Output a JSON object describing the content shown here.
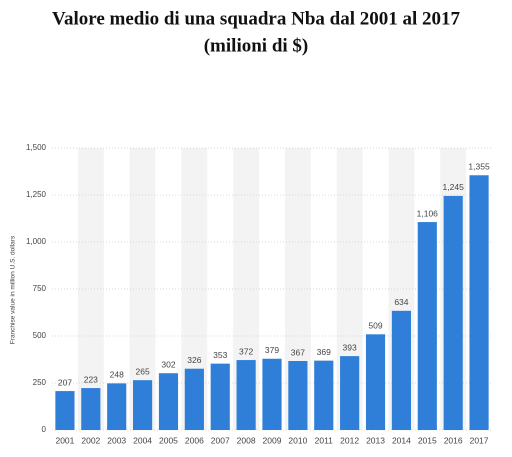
{
  "chart_data": {
    "type": "bar",
    "title": "Valore medio di una squadra Nba dal 2001 al 2017",
    "subtitle": "(milioni di $)",
    "y_label": "Franchise value in million U.S. dollars",
    "categories": [
      "2001",
      "2002",
      "2003",
      "2004",
      "2005",
      "2006",
      "2007",
      "2008",
      "2009",
      "2010",
      "2011",
      "2012",
      "2013",
      "2014",
      "2015",
      "2016",
      "2017"
    ],
    "values": [
      207,
      223,
      248,
      265,
      302,
      326,
      353,
      372,
      379,
      367,
      369,
      393,
      509,
      634,
      1106,
      1245,
      1355
    ],
    "value_labels": [
      "207",
      "223",
      "248",
      "265",
      "302",
      "326",
      "353",
      "372",
      "379",
      "367",
      "369",
      "393",
      "509",
      "634",
      "1,106",
      "1,245",
      "1,355"
    ],
    "color": "#2f7ed8",
    "ylim": [
      0,
      1500
    ],
    "yticks": [
      0,
      250,
      500,
      750,
      {
        "value": 1000,
        "label": "1,000"
      },
      {
        "value": 1250,
        "label": "1,250"
      },
      {
        "value": 1500,
        "label": "1,500"
      }
    ],
    "grid": true
  }
}
